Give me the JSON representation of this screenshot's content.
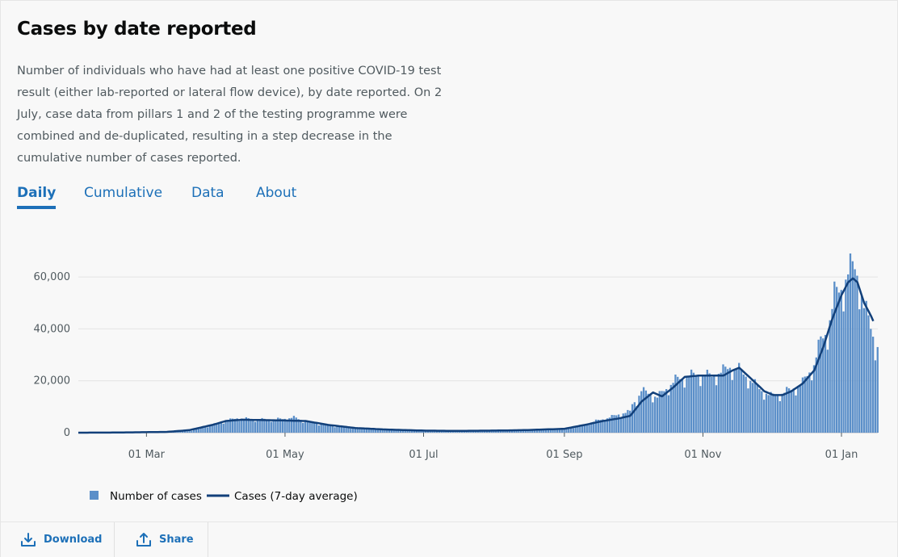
{
  "card": {
    "title": "Cases by date reported",
    "description": "Number of individuals who have had at least one positive COVID-19 test result (either lab-reported or lateral flow device), by date reported. On 2 July, case data from pillars 1 and 2 of the testing programme were combined and de-duplicated, resulting in a step decrease in the cumulative number of cases reported."
  },
  "tabs": [
    {
      "label": "Daily",
      "active": true
    },
    {
      "label": "Cumulative",
      "active": false
    },
    {
      "label": "Data",
      "active": false
    },
    {
      "label": "About",
      "active": false
    }
  ],
  "footer": {
    "download_label": "Download",
    "download_icon": "download-icon",
    "share_label": "Share",
    "share_icon": "share-icon"
  },
  "colors": {
    "accent": "#1d70b8",
    "bar": "#5b8fc9",
    "line": "#12407a"
  },
  "chart_data": {
    "type": "bar",
    "title": "",
    "xlabel": "",
    "ylabel": "",
    "ylim": [
      0,
      70000
    ],
    "yticks": [
      0,
      20000,
      40000,
      60000
    ],
    "ytick_labels": [
      "0",
      "20,000",
      "40,000",
      "60,000"
    ],
    "x_range": [
      "2020-01-31",
      "2021-01-17"
    ],
    "xticks": [
      "2020-03-01",
      "2020-05-01",
      "2020-07-01",
      "2020-09-01",
      "2020-11-01",
      "2021-01-01"
    ],
    "xtick_labels": [
      "01 Mar",
      "01 May",
      "01 Jul",
      "01 Sep",
      "01 Nov",
      "01 Jan"
    ],
    "grid": true,
    "legend_position": "bottom-left",
    "series": [
      {
        "name": "Number of cases",
        "kind": "bar",
        "color": "#5b8fc9",
        "points": [
          [
            "2020-01-31",
            0
          ],
          [
            "2020-02-15",
            20
          ],
          [
            "2020-03-01",
            35
          ],
          [
            "2020-03-10",
            80
          ],
          [
            "2020-03-20",
            600
          ],
          [
            "2020-03-28",
            2500
          ],
          [
            "2020-04-05",
            4500
          ],
          [
            "2020-04-10",
            5500
          ],
          [
            "2020-04-20",
            5000
          ],
          [
            "2020-04-30",
            5200
          ],
          [
            "2020-05-05",
            5800
          ],
          [
            "2020-05-10",
            4300
          ],
          [
            "2020-05-20",
            2800
          ],
          [
            "2020-06-01",
            1800
          ],
          [
            "2020-06-15",
            1200
          ],
          [
            "2020-07-01",
            700
          ],
          [
            "2020-07-15",
            650
          ],
          [
            "2020-08-01",
            800
          ],
          [
            "2020-08-15",
            1000
          ],
          [
            "2020-09-01",
            1500
          ],
          [
            "2020-09-10",
            3000
          ],
          [
            "2020-09-15",
            4500
          ],
          [
            "2020-09-20",
            5500
          ],
          [
            "2020-09-25",
            7000
          ],
          [
            "2020-09-30",
            8000
          ],
          [
            "2020-10-01",
            11000
          ],
          [
            "2020-10-03",
            12500
          ],
          [
            "2020-10-05",
            16000
          ],
          [
            "2020-10-08",
            15000
          ],
          [
            "2020-10-12",
            13500
          ],
          [
            "2020-10-15",
            16000
          ],
          [
            "2020-10-20",
            20000
          ],
          [
            "2020-10-25",
            21500
          ],
          [
            "2020-10-30",
            22000
          ],
          [
            "2020-11-05",
            21500
          ],
          [
            "2020-11-10",
            23500
          ],
          [
            "2020-11-13",
            25000
          ],
          [
            "2020-11-17",
            24000
          ],
          [
            "2020-11-22",
            20000
          ],
          [
            "2020-11-27",
            16000
          ],
          [
            "2020-12-01",
            14000
          ],
          [
            "2020-12-06",
            15000
          ],
          [
            "2020-12-10",
            16500
          ],
          [
            "2020-12-15",
            19000
          ],
          [
            "2020-12-20",
            26000
          ],
          [
            "2020-12-23",
            35000
          ],
          [
            "2020-12-26",
            39000
          ],
          [
            "2020-12-29",
            52000
          ],
          [
            "2021-01-01",
            55000
          ],
          [
            "2021-01-04",
            61000
          ],
          [
            "2021-01-07",
            63000
          ],
          [
            "2021-01-09",
            58000
          ],
          [
            "2021-01-11",
            48000
          ],
          [
            "2021-01-14",
            40000
          ],
          [
            "2021-01-16",
            34000
          ],
          [
            "2021-01-17",
            33000
          ]
        ]
      },
      {
        "name": "Cases (7-day average)",
        "kind": "line",
        "color": "#12407a",
        "points": [
          [
            "2020-01-31",
            0
          ],
          [
            "2020-02-15",
            50
          ],
          [
            "2020-03-01",
            200
          ],
          [
            "2020-03-10",
            300
          ],
          [
            "2020-03-20",
            1000
          ],
          [
            "2020-03-30",
            3000
          ],
          [
            "2020-04-05",
            4500
          ],
          [
            "2020-04-12",
            5000
          ],
          [
            "2020-04-25",
            4800
          ],
          [
            "2020-05-01",
            4700
          ],
          [
            "2020-05-10",
            4500
          ],
          [
            "2020-05-20",
            3000
          ],
          [
            "2020-06-01",
            1800
          ],
          [
            "2020-06-15",
            1200
          ],
          [
            "2020-07-01",
            800
          ],
          [
            "2020-07-15",
            700
          ],
          [
            "2020-08-01",
            800
          ],
          [
            "2020-08-15",
            1000
          ],
          [
            "2020-09-01",
            1500
          ],
          [
            "2020-09-10",
            3000
          ],
          [
            "2020-09-18",
            4500
          ],
          [
            "2020-09-25",
            5500
          ],
          [
            "2020-09-30",
            6500
          ],
          [
            "2020-10-05",
            12000
          ],
          [
            "2020-10-10",
            15500
          ],
          [
            "2020-10-14",
            14000
          ],
          [
            "2020-10-19",
            17500
          ],
          [
            "2020-10-24",
            21500
          ],
          [
            "2020-10-30",
            22000
          ],
          [
            "2020-11-05",
            22000
          ],
          [
            "2020-11-10",
            22000
          ],
          [
            "2020-11-14",
            24000
          ],
          [
            "2020-11-17",
            25000
          ],
          [
            "2020-11-22",
            21000
          ],
          [
            "2020-11-28",
            16000
          ],
          [
            "2020-12-02",
            14500
          ],
          [
            "2020-12-06",
            14500
          ],
          [
            "2020-12-10",
            16000
          ],
          [
            "2020-12-15",
            19000
          ],
          [
            "2020-12-20",
            24000
          ],
          [
            "2020-12-24",
            33000
          ],
          [
            "2020-12-28",
            44000
          ],
          [
            "2021-01-01",
            53000
          ],
          [
            "2021-01-04",
            58000
          ],
          [
            "2021-01-06",
            59500
          ],
          [
            "2021-01-08",
            58000
          ],
          [
            "2021-01-11",
            50000
          ],
          [
            "2021-01-14",
            45000
          ],
          [
            "2021-01-15",
            43000
          ]
        ]
      }
    ]
  }
}
